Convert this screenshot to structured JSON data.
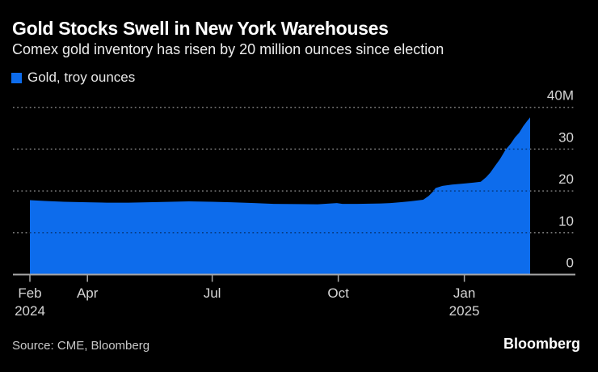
{
  "chart_data": {
    "type": "area",
    "title": "Gold Stocks Swell in New York Warehouses",
    "subtitle": "Comex gold inventory has risen by 20 million ounces since election",
    "legend_position": "top-left",
    "grid": "horizontal-dotted",
    "xlabel": "",
    "ylabel": "",
    "ylim": [
      0,
      40
    ],
    "value_unit": "million troy ounces",
    "y_ticks": [
      {
        "value": 40,
        "label": "40M"
      },
      {
        "value": 30,
        "label": "30"
      },
      {
        "value": 20,
        "label": "20"
      },
      {
        "value": 10,
        "label": "10"
      },
      {
        "value": 0,
        "label": "0"
      }
    ],
    "x_ticks": [
      {
        "date": "2024-02-19",
        "label": "Feb",
        "sublabel": "2024"
      },
      {
        "date": "2024-04-01",
        "label": "Apr",
        "sublabel": ""
      },
      {
        "date": "2024-07-01",
        "label": "Jul",
        "sublabel": ""
      },
      {
        "date": "2024-10-01",
        "label": "Oct",
        "sublabel": ""
      },
      {
        "date": "2025-01-01",
        "label": "Jan",
        "sublabel": "2025"
      }
    ],
    "series": [
      {
        "name": "Gold, troy ounces",
        "color": "#0d6cec",
        "points": [
          [
            "2024-02-19",
            17.8
          ],
          [
            "2024-03-01",
            17.6
          ],
          [
            "2024-03-15",
            17.4
          ],
          [
            "2024-04-01",
            17.3
          ],
          [
            "2024-04-15",
            17.2
          ],
          [
            "2024-05-01",
            17.2
          ],
          [
            "2024-05-15",
            17.3
          ],
          [
            "2024-06-01",
            17.4
          ],
          [
            "2024-06-14",
            17.5
          ],
          [
            "2024-07-01",
            17.4
          ],
          [
            "2024-07-15",
            17.3
          ],
          [
            "2024-08-01",
            17.1
          ],
          [
            "2024-08-15",
            16.9
          ],
          [
            "2024-09-02",
            16.85
          ],
          [
            "2024-09-16",
            16.8
          ],
          [
            "2024-09-30",
            17.1
          ],
          [
            "2024-10-04",
            16.9
          ],
          [
            "2024-10-15",
            16.9
          ],
          [
            "2024-11-01",
            17.0
          ],
          [
            "2024-11-08",
            17.1
          ],
          [
            "2024-11-15",
            17.3
          ],
          [
            "2024-11-22",
            17.5
          ],
          [
            "2024-12-02",
            17.9
          ],
          [
            "2024-12-06",
            18.8
          ],
          [
            "2024-12-09",
            19.8
          ],
          [
            "2024-12-11",
            20.7
          ],
          [
            "2024-12-16",
            21.2
          ],
          [
            "2024-12-23",
            21.5
          ],
          [
            "2025-01-02",
            21.8
          ],
          [
            "2025-01-08",
            22.0
          ],
          [
            "2025-01-13",
            22.2
          ],
          [
            "2025-01-17",
            23.3
          ],
          [
            "2025-01-20",
            24.4
          ],
          [
            "2025-01-23",
            25.8
          ],
          [
            "2025-01-27",
            27.6
          ],
          [
            "2025-01-31",
            29.8
          ],
          [
            "2025-02-04",
            31.4
          ],
          [
            "2025-02-07",
            32.8
          ],
          [
            "2025-02-10",
            33.9
          ],
          [
            "2025-02-13",
            35.5
          ],
          [
            "2025-02-16",
            36.8
          ],
          [
            "2025-02-18",
            37.6
          ]
        ]
      }
    ]
  },
  "colors": {
    "background": "#000000",
    "series_blue": "#0d6cec",
    "grid": "#7a7a7a",
    "grid_over_area": "rgba(0,0,0,0.45)",
    "axis": "#a6a6a6",
    "tick_label": "#d6d6d6"
  },
  "footer": {
    "source": "Source: CME, Bloomberg",
    "brand": "Bloomberg"
  }
}
